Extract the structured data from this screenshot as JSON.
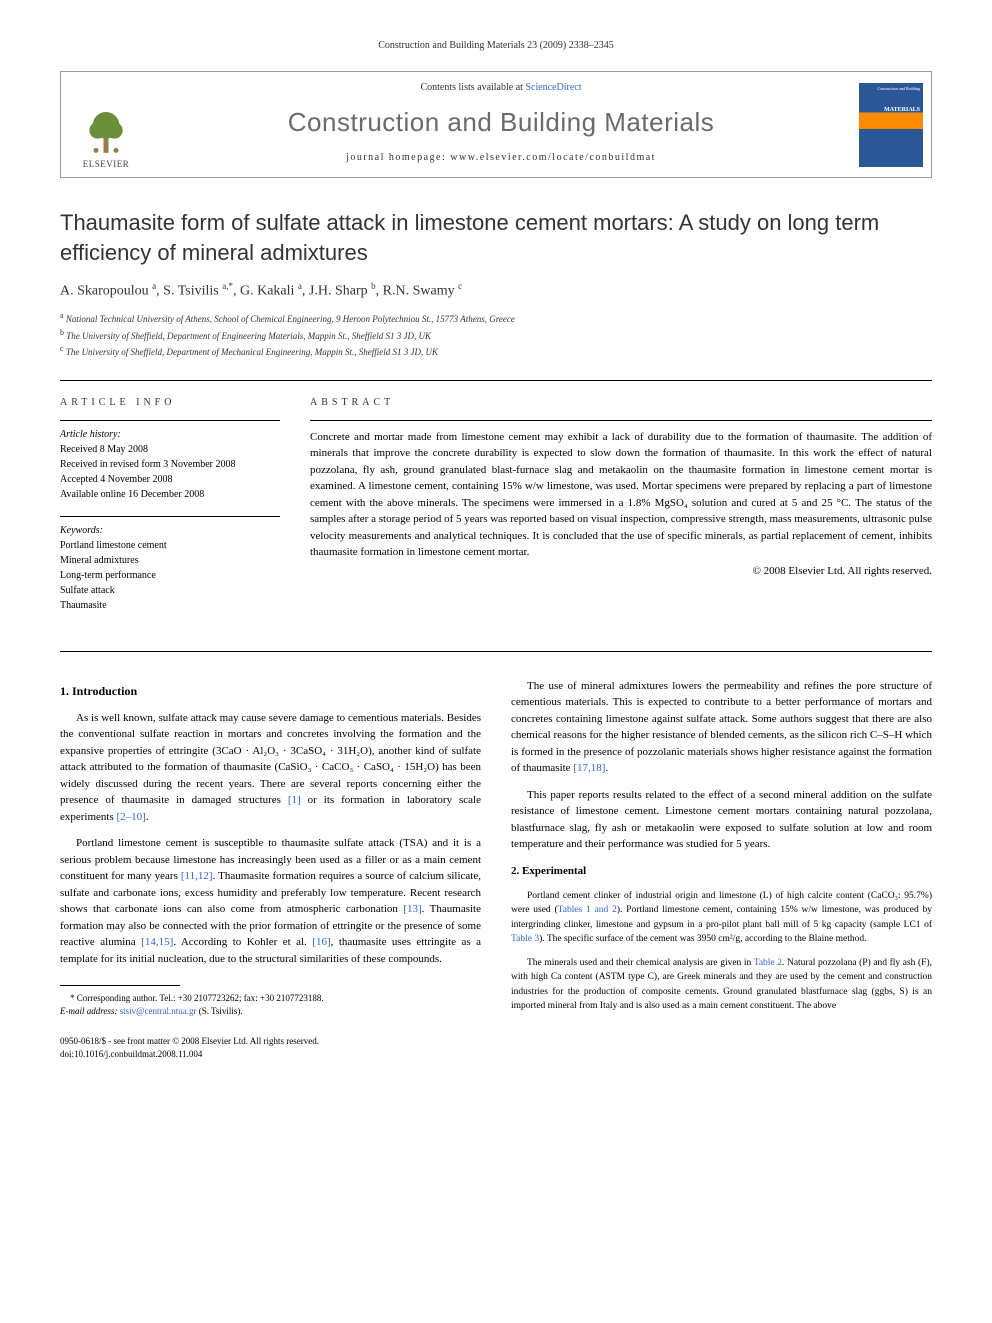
{
  "running_head": "Construction and Building Materials 23 (2009) 2338–2345",
  "header": {
    "contents_prefix": "Contents lists available at ",
    "contents_link": "ScienceDirect",
    "journal_name": "Construction and Building Materials",
    "homepage_prefix": "journal homepage: ",
    "homepage_url": "www.elsevier.com/locate/conbuildmat",
    "publisher": "ELSEVIER",
    "cover_small": "Construction and Building",
    "cover_large": "MATERIALS"
  },
  "article": {
    "title": "Thaumasite form of sulfate attack in limestone cement mortars: A study on long term efficiency of mineral admixtures",
    "authors_html": "A. Skaropoulou <sup>a</sup>, S. Tsivilis <sup>a,*</sup>, G. Kakali <sup>a</sup>, J.H. Sharp <sup>b</sup>, R.N. Swamy <sup>c</sup>",
    "affiliations": [
      {
        "marker": "a",
        "text": "National Technical University of Athens, School of Chemical Engineering, 9 Heroon Polytechniou St., 15773 Athens, Greece"
      },
      {
        "marker": "b",
        "text": "The University of Sheffield, Department of Engineering Materials, Mappin St., Sheffield S1 3 JD, UK"
      },
      {
        "marker": "c",
        "text": "The University of Sheffield, Department of Mechanical Engineering, Mappin St., Sheffield S1 3 JD, UK"
      }
    ]
  },
  "info": {
    "label": "ARTICLE INFO",
    "history_label": "Article history:",
    "history": [
      "Received 8 May 2008",
      "Received in revised form 3 November 2008",
      "Accepted 4 November 2008",
      "Available online 16 December 2008"
    ],
    "keywords_label": "Keywords:",
    "keywords": [
      "Portland limestone cement",
      "Mineral admixtures",
      "Long-term performance",
      "Sulfate attack",
      "Thaumasite"
    ]
  },
  "abstract": {
    "label": "ABSTRACT",
    "text": "Concrete and mortar made from limestone cement may exhibit a lack of durability due to the formation of thaumasite. The addition of minerals that improve the concrete durability is expected to slow down the formation of thaumasite. In this work the effect of natural pozzolana, fly ash, ground granulated blast-furnace slag and metakaolin on the thaumasite formation in limestone cement mortar is examined. A limestone cement, containing 15% w/w limestone, was used. Mortar specimens were prepared by replacing a part of limestone cement with the above minerals. The specimens were immersed in a 1.8% MgSO₄ solution and cured at 5 and 25 °C. The status of the samples after a storage period of 5 years was reported based on visual inspection, compressive strength, mass measurements, ultrasonic pulse velocity measurements and analytical techniques. It is concluded that the use of specific minerals, as partial replacement of cement, inhibits thaumasite formation in limestone cement mortar.",
    "copyright": "© 2008 Elsevier Ltd. All rights reserved."
  },
  "sections": {
    "intro_heading": "1. Introduction",
    "intro_p1a": "As is well known, sulfate attack may cause severe damage to cementious materials. Besides the conventional sulfate reaction in mortars and concretes involving the formation and the expansive properties of ettringite (3CaO · Al₂O₃ · 3CaSO₄ · 31H₂O), another kind of sulfate attack attributed to the formation of thaumasite (CaSiO₃ · CaCO₃ · CaSO₄ · 15H₂O) has been widely discussed during the recent years. There are several reports concerning either the presence of thaumasite in damaged structures ",
    "intro_ref1": "[1]",
    "intro_p1b": " or its formation in laboratory scale experiments ",
    "intro_ref2": "[2–10]",
    "intro_p1c": ".",
    "intro_p2a": "Portland limestone cement is susceptible to thaumasite sulfate attack (TSA) and it is a serious problem because limestone has increasingly been used as a filler or as a main cement constituent for many years ",
    "intro_ref3": "[11,12]",
    "intro_p2b": ". Thaumasite formation requires a source of calcium silicate, sulfate and carbonate ions, excess humidity and preferably low temperature. Recent research shows that carbonate ions can also come from atmospheric carbonation ",
    "intro_ref4": "[13]",
    "intro_p2c": ". Thaumasite formation may also be connected with the prior formation of ettringite or the presence of some reactive alumina ",
    "intro_ref5": "[14,15]",
    "intro_p2d": ". According to Kohler et al. ",
    "intro_ref6": "[16]",
    "intro_p2e": ", thaumasite uses ettringite as a template for its initial nucleation, due to the structural similarities of these compounds.",
    "intro_p3a": "The use of mineral admixtures lowers the permeability and refines the pore structure of cementious materials. This is expected to contribute to a better performance of mortars and concretes containing limestone against sulfate attack. Some authors suggest that there are also chemical reasons for the higher resistance of blended cements, as the silicon rich C–S–H which is formed in the presence of pozzolanic materials shows higher resistance against the formation of thaumasite ",
    "intro_ref7": "[17,18]",
    "intro_p3b": ".",
    "intro_p4": "This paper reports results related to the effect of a second mineral addition on the sulfate resistance of limestone cement. Limestone cement mortars containing natural pozzolana, blastfurnace slag, fly ash or metakaolin were exposed to sulfate solution at low and room temperature and their performance was studied for 5 years.",
    "exp_heading": "2. Experimental",
    "exp_p1a": "Portland cement clinker of industrial origin and limestone (L) of high calcite content (CaCO₃: 95.7%) were used (",
    "exp_ref1": "Tables 1 and 2",
    "exp_p1b": "). Portland limestone cement, containing 15% w/w limestone, was produced by intergrinding clinker, limestone and gypsum in a pro-pilot plant ball mill of 5 kg capacity (sample LC1 of ",
    "exp_ref2": "Table 3",
    "exp_p1c": "). The specific surface of the cement was 3950 cm²/g, according to the Blaine method.",
    "exp_p2a": "The minerals used and their chemical analysis are given in ",
    "exp_ref3": "Table 2",
    "exp_p2b": ". Natural pozzolana (P) and fly ash (F), with high Ca content (ASTM type C), are Greek minerals and they are used by the cement and construction industries for the production of composite cements. Ground granulated blastfurnace slag (ggbs, S) is an imported mineral from Italy and is also used as a main cement constituent. The above"
  },
  "footnote": {
    "marker": "*",
    "text": " Corresponding author. Tel.: +30 2107723262; fax: +30 2107723188.",
    "email_label": "E-mail address: ",
    "email": "stsiv@central.ntua.gr",
    "email_tail": " (S. Tsivilis)."
  },
  "bottom": {
    "line1": "0950-0618/$ - see front matter © 2008 Elsevier Ltd. All rights reserved.",
    "line2": "doi:10.1016/j.conbuildmat.2008.11.004"
  },
  "colors": {
    "link": "#3366cc",
    "text": "#000000",
    "muted": "#333333",
    "journal_gray": "#6a6a6a"
  }
}
